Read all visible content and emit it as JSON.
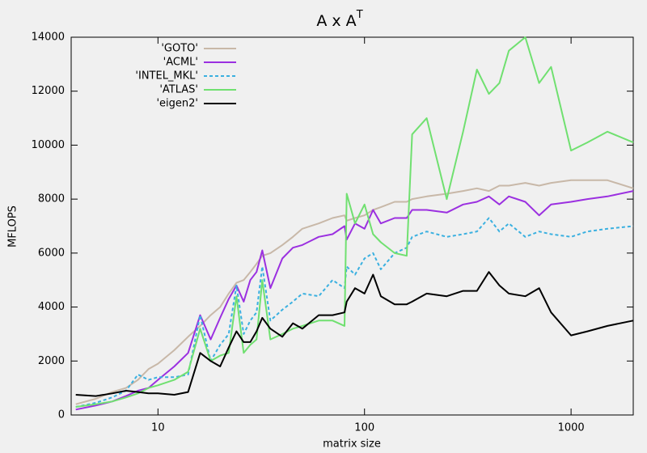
{
  "chart_data": {
    "type": "line",
    "title": "A x A",
    "title_superscript": "T",
    "x_label": "matrix size",
    "y_label": "MFLOPS",
    "x_scale": "log",
    "xlim": [
      3.8,
      2000
    ],
    "xticks": [
      10,
      100,
      1000
    ],
    "ylim": [
      0,
      14000
    ],
    "yticks": [
      0,
      2000,
      4000,
      6000,
      8000,
      10000,
      12000,
      14000
    ],
    "grid": false,
    "legend": "top-left",
    "x": [
      4,
      5,
      6,
      7,
      8,
      9,
      10,
      12,
      14,
      16,
      18,
      20,
      22,
      24,
      26,
      28,
      30,
      32,
      35,
      40,
      45,
      50,
      60,
      70,
      80,
      82,
      90,
      100,
      110,
      120,
      140,
      160,
      170,
      200,
      250,
      300,
      350,
      400,
      450,
      500,
      600,
      700,
      800,
      1000,
      1200,
      1500,
      2000
    ],
    "series": [
      {
        "name": "'GOTO'",
        "color": "#c8b8a8",
        "style": "solid",
        "values": [
          400,
          600,
          850,
          1000,
          1300,
          1700,
          1900,
          2400,
          2900,
          3300,
          3700,
          4000,
          4500,
          4900,
          5000,
          5300,
          5600,
          5900,
          6000,
          6300,
          6600,
          6900,
          7100,
          7300,
          7400,
          7200,
          7300,
          7400,
          7600,
          7700,
          7900,
          7900,
          8000,
          8100,
          8200,
          8300,
          8400,
          8300,
          8500,
          8500,
          8600,
          8500,
          8600,
          8700,
          8700,
          8700,
          8400
        ]
      },
      {
        "name": "'ACML'",
        "color": "#9b30e0",
        "style": "solid",
        "values": [
          200,
          350,
          500,
          700,
          900,
          1000,
          1300,
          1800,
          2300,
          3700,
          2800,
          3600,
          4300,
          4800,
          4200,
          5000,
          5300,
          6100,
          4700,
          5800,
          6200,
          6300,
          6600,
          6700,
          7000,
          6500,
          7100,
          6900,
          7600,
          7100,
          7300,
          7300,
          7600,
          7600,
          7500,
          7800,
          7900,
          8100,
          7800,
          8100,
          7900,
          7400,
          7800,
          7900,
          8000,
          8100,
          8300
        ]
      },
      {
        "name": "'INTEL_MKL'",
        "color": "#3ab0e0",
        "style": "dashed",
        "values": [
          300,
          450,
          650,
          900,
          1500,
          1300,
          1400,
          1400,
          1500,
          3700,
          2000,
          2600,
          3000,
          4800,
          3000,
          3500,
          3800,
          5500,
          3500,
          3900,
          4200,
          4500,
          4400,
          5000,
          4700,
          5500,
          5200,
          5800,
          6000,
          5400,
          6000,
          6200,
          6600,
          6800,
          6600,
          6700,
          6800,
          7300,
          6800,
          7100,
          6600,
          6800,
          6700,
          6600,
          6800,
          6900,
          7000
        ]
      },
      {
        "name": "'ATLAS'",
        "color": "#70e070",
        "style": "solid",
        "values": [
          300,
          400,
          500,
          650,
          800,
          1000,
          1100,
          1300,
          1600,
          3200,
          2000,
          2200,
          2300,
          4400,
          2300,
          2600,
          2800,
          5000,
          2800,
          3000,
          3200,
          3300,
          3500,
          3500,
          3300,
          8200,
          7100,
          7800,
          6700,
          6400,
          6000,
          5900,
          10400,
          11000,
          8000,
          10500,
          12800,
          11900,
          12300,
          13500,
          14000,
          12300,
          12900,
          9800,
          10100,
          10500,
          10100
        ]
      },
      {
        "name": "'eigen2'",
        "color": "#000000",
        "style": "solid",
        "values": [
          750,
          700,
          800,
          900,
          850,
          800,
          800,
          750,
          850,
          2300,
          2000,
          1800,
          2500,
          3100,
          2700,
          2700,
          3100,
          3600,
          3200,
          2900,
          3400,
          3200,
          3700,
          3700,
          3800,
          4200,
          4700,
          4500,
          5200,
          4400,
          4100,
          4100,
          4200,
          4500,
          4400,
          4600,
          4600,
          5300,
          4800,
          4500,
          4400,
          4700,
          3800,
          2950,
          3100,
          3300,
          3500
        ]
      }
    ]
  }
}
